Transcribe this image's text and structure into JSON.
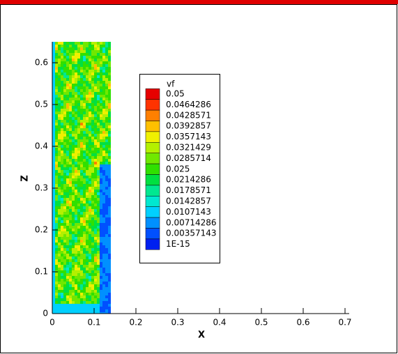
{
  "chart_data": {
    "type": "contour",
    "xlabel": "X",
    "ylabel": "Z",
    "xlim": [
      0,
      0.71
    ],
    "ylim": [
      0,
      0.65
    ],
    "xticks": [
      0,
      0.1,
      0.2,
      0.3,
      0.4,
      0.5,
      0.6,
      0.7
    ],
    "yticks": [
      0,
      0.1,
      0.2,
      0.3,
      0.4,
      0.5,
      0.6
    ],
    "domain_x": [
      0,
      0.14
    ],
    "legend": {
      "title": "vf",
      "levels": [
        0.05,
        0.0464286,
        0.0428571,
        0.0392857,
        0.0357143,
        0.0321429,
        0.0285714,
        0.025,
        0.0214286,
        0.0178571,
        0.0142857,
        0.0107143,
        0.00714286,
        0.00357143,
        {
          "value": 1e-15,
          "label": "1E-15"
        }
      ],
      "colors": [
        "#e60000",
        "#ff3300",
        "#ff8000",
        "#ffc000",
        "#f0f000",
        "#b4f000",
        "#70e800",
        "#30e000",
        "#00e040",
        "#00e890",
        "#00e8d0",
        "#00d0ff",
        "#0090ff",
        "#0050ff",
        "#0020f0"
      ]
    }
  }
}
